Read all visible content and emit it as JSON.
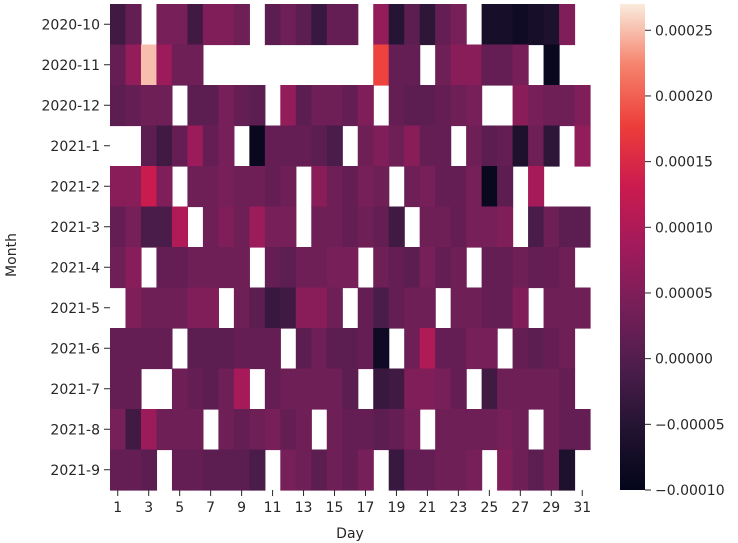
{
  "chart_data": {
    "type": "heatmap",
    "title": "",
    "xlabel": "Day",
    "ylabel": "Month",
    "x_tick_labels": [
      "1",
      "3",
      "5",
      "7",
      "9",
      "11",
      "13",
      "15",
      "17",
      "19",
      "21",
      "23",
      "25",
      "27",
      "29",
      "31"
    ],
    "rows": [
      "2020-10",
      "2020-11",
      "2020-12",
      "2021-1",
      "2021-2",
      "2021-3",
      "2021-4",
      "2021-5",
      "2021-6",
      "2021-7",
      "2021-8",
      "2021-9"
    ],
    "columns": [
      1,
      2,
      3,
      4,
      5,
      6,
      7,
      8,
      9,
      10,
      11,
      12,
      13,
      14,
      15,
      16,
      17,
      18,
      19,
      20,
      21,
      22,
      23,
      24,
      25,
      26,
      27,
      28,
      29,
      30,
      31
    ],
    "values": [
      [
        -2e-05,
        2e-05,
        null,
        4e-05,
        4e-05,
        -2e-05,
        5e-05,
        5e-05,
        3e-05,
        null,
        1e-05,
        3e-05,
        1e-05,
        -3e-05,
        2e-05,
        2e-05,
        null,
        7e-05,
        -5e-05,
        1e-05,
        -4e-05,
        2e-05,
        4e-05,
        null,
        -7e-05,
        -7e-05,
        -8e-05,
        -7e-05,
        -6e-05,
        5e-05,
        null
      ],
      [
        2e-05,
        7e-05,
        0.00025,
        8e-05,
        3e-05,
        3e-05,
        null,
        null,
        null,
        null,
        null,
        null,
        null,
        null,
        null,
        null,
        null,
        0.00018,
        2e-05,
        2e-05,
        null,
        3e-05,
        6e-05,
        6e-05,
        2e-05,
        2e-05,
        4e-05,
        null,
        -9e-05,
        null,
        null
      ],
      [
        1e-05,
        2e-05,
        3e-05,
        3e-05,
        null,
        1e-05,
        1e-05,
        4e-05,
        2e-05,
        1e-05,
        null,
        7e-05,
        1e-05,
        3e-05,
        3e-05,
        2e-05,
        5e-05,
        null,
        2e-05,
        1e-05,
        1e-05,
        2e-05,
        3e-05,
        4e-05,
        null,
        null,
        6e-05,
        4e-05,
        3e-05,
        3e-05,
        5e-05
      ],
      [
        null,
        null,
        1e-05,
        -2e-05,
        2e-05,
        8e-05,
        2e-05,
        4e-05,
        null,
        -9e-05,
        2e-05,
        2e-05,
        2e-05,
        1e-05,
        -1e-05,
        null,
        3e-05,
        5e-05,
        3e-05,
        6e-05,
        2e-05,
        2e-05,
        null,
        3e-05,
        1e-05,
        2e-05,
        -6e-05,
        3e-05,
        -4e-05,
        null,
        7e-05
      ],
      [
        6e-05,
        6e-05,
        0.00013,
        5e-05,
        null,
        3e-05,
        3e-05,
        4e-05,
        3e-05,
        3e-05,
        2e-05,
        3e-05,
        null,
        6e-05,
        3e-05,
        2e-05,
        4e-05,
        3e-05,
        null,
        3e-05,
        4e-05,
        2e-05,
        2e-05,
        4e-05,
        -9e-05,
        1e-05,
        null,
        9e-05,
        null,
        null,
        null
      ],
      [
        2e-05,
        4e-05,
        -1e-05,
        -1e-05,
        0.0001,
        null,
        3e-05,
        5e-05,
        3e-05,
        8e-05,
        4e-05,
        4e-05,
        null,
        3e-05,
        3e-05,
        2e-05,
        3e-05,
        2e-05,
        -2e-05,
        null,
        3e-05,
        3e-05,
        2e-05,
        4e-05,
        4e-05,
        5e-05,
        null,
        -1e-05,
        3e-05,
        1e-05,
        1e-05
      ],
      [
        3e-05,
        6e-05,
        null,
        2e-05,
        2e-05,
        3e-05,
        3e-05,
        3e-05,
        3e-05,
        null,
        2e-05,
        1e-05,
        3e-05,
        3e-05,
        4e-05,
        4e-05,
        null,
        3e-05,
        2e-05,
        1e-05,
        4e-05,
        2e-05,
        3e-05,
        null,
        2e-05,
        2e-05,
        3e-05,
        2e-05,
        2e-05,
        3e-05,
        null
      ],
      [
        null,
        5e-05,
        3e-05,
        3e-05,
        3e-05,
        5e-05,
        5e-05,
        null,
        3e-05,
        1e-05,
        -3e-05,
        -2e-05,
        6e-05,
        6e-05,
        3e-05,
        null,
        2e-05,
        -1e-05,
        2e-05,
        3e-05,
        3e-05,
        null,
        3e-05,
        3e-05,
        2e-05,
        2e-05,
        5e-05,
        null,
        3e-05,
        3e-05,
        3e-05
      ],
      [
        2e-05,
        2e-05,
        2e-05,
        2e-05,
        null,
        1e-05,
        1e-05,
        1e-05,
        2e-05,
        2e-05,
        2e-05,
        null,
        1e-05,
        3e-05,
        1e-05,
        1e-05,
        2e-05,
        -8e-05,
        null,
        3e-05,
        0.0001,
        2e-05,
        2e-05,
        4e-05,
        4e-05,
        null,
        2e-05,
        1e-05,
        2e-05,
        3e-05,
        null
      ],
      [
        2e-05,
        2e-05,
        null,
        null,
        3e-05,
        2e-05,
        1e-05,
        3e-05,
        9e-05,
        null,
        2e-05,
        3e-05,
        3e-05,
        3e-05,
        3e-05,
        1e-05,
        null,
        -3e-05,
        -2e-05,
        5e-05,
        5e-05,
        4e-05,
        2e-05,
        null,
        -2e-05,
        3e-05,
        3e-05,
        3e-05,
        3e-05,
        2e-05,
        null
      ],
      [
        4e-05,
        -2e-05,
        8e-05,
        3e-05,
        3e-05,
        3e-05,
        null,
        3e-05,
        2e-05,
        3e-05,
        4e-05,
        2e-05,
        3e-05,
        null,
        3e-05,
        2e-05,
        2e-05,
        1e-05,
        2e-05,
        4e-05,
        null,
        3e-05,
        3e-05,
        3e-05,
        3e-05,
        4e-05,
        3e-05,
        null,
        3e-05,
        2e-05,
        2e-05
      ],
      [
        2e-05,
        2e-05,
        1e-05,
        null,
        2e-05,
        2e-05,
        1e-05,
        1e-05,
        1e-05,
        -1e-05,
        null,
        4e-05,
        3e-05,
        1e-05,
        3e-05,
        2e-05,
        4e-05,
        null,
        -3e-05,
        2e-05,
        2e-05,
        3e-05,
        3e-05,
        4e-05,
        null,
        5e-05,
        3e-05,
        1e-05,
        3e-05,
        -6e-05,
        null
      ]
    ],
    "colorbar": {
      "vmin": -0.0001,
      "vmax": 0.00027,
      "colormap": "rocket",
      "ticks": [
        "0.00025",
        "0.00020",
        "0.00015",
        "0.00010",
        "0.00005",
        "0.00000",
        "−0.00005",
        "−0.00010"
      ]
    },
    "grid": false,
    "legend": "colorbar-right"
  }
}
